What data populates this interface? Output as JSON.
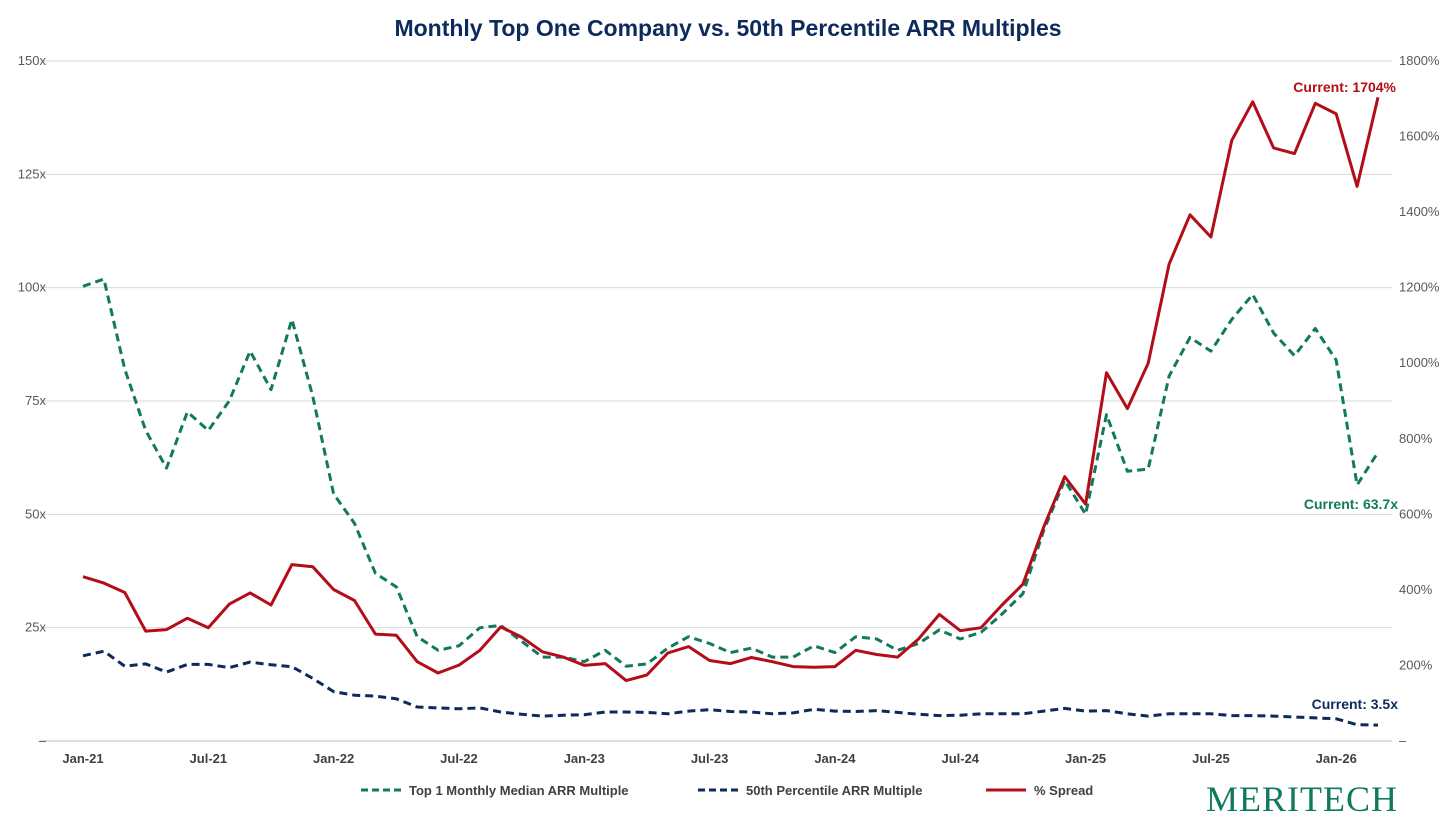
{
  "chart_data": {
    "type": "line",
    "title": "Monthly Top One Company vs. 50th Percentile ARR Multiples",
    "left_axis": {
      "min": 0,
      "max": 150,
      "ticks": [
        0,
        25,
        50,
        75,
        100,
        125,
        150
      ],
      "tick_labels": [
        "–",
        "25x",
        "50x",
        "75x",
        "100x",
        "125x",
        "150x"
      ]
    },
    "right_axis": {
      "min": 0,
      "max": 1800,
      "ticks": [
        0,
        200,
        400,
        600,
        800,
        1000,
        1200,
        1400,
        1600,
        1800
      ],
      "tick_labels": [
        "–",
        "200%",
        "400%",
        "600%",
        "800%",
        "1000%",
        "1200%",
        "1400%",
        "1600%",
        "1800%"
      ]
    },
    "x": [
      "Jan-21",
      "Feb-21",
      "Mar-21",
      "Apr-21",
      "May-21",
      "Jun-21",
      "Jul-21",
      "Aug-21",
      "Sep-21",
      "Oct-21",
      "Nov-21",
      "Dec-21",
      "Jan-22",
      "Feb-22",
      "Mar-22",
      "Apr-22",
      "May-22",
      "Jun-22",
      "Jul-22",
      "Aug-22",
      "Sep-22",
      "Oct-22",
      "Nov-22",
      "Dec-22",
      "Jan-23",
      "Feb-23",
      "Mar-23",
      "Apr-23",
      "May-23",
      "Jun-23",
      "Jul-23",
      "Aug-23",
      "Sep-23",
      "Oct-23",
      "Nov-23",
      "Dec-23",
      "Jan-24",
      "Feb-24",
      "Mar-24",
      "Apr-24",
      "May-24",
      "Jun-24",
      "Jul-24",
      "Aug-24",
      "Sep-24",
      "Oct-24",
      "Nov-24",
      "Dec-24",
      "Jan-25",
      "Feb-25",
      "Mar-25",
      "Apr-25",
      "May-25",
      "Jun-25",
      "Jul-25",
      "Aug-25",
      "Sep-25",
      "Oct-25",
      "Nov-25",
      "Dec-25",
      "Jan-26",
      "Feb-26",
      "Mar-26"
    ],
    "x_tick_labels": [
      "Jan-21",
      "Jul-21",
      "Jan-22",
      "Jul-22",
      "Jan-23",
      "Jul-23",
      "Jan-24",
      "Jul-24",
      "Jan-25",
      "Jul-25",
      "Jan-26"
    ],
    "series": [
      {
        "name": "Top 1 Monthly Median ARR Multiple",
        "axis": "left",
        "color": "#127a5c",
        "style": "dashed",
        "values": [
          100.3,
          101.9,
          82.0,
          68.5,
          60.2,
          72.6,
          68.5,
          75.0,
          86.0,
          77.5,
          93.0,
          76.0,
          54.5,
          48.0,
          37.0,
          34.0,
          23.0,
          20.0,
          21.0,
          25.0,
          25.5,
          22.0,
          18.5,
          18.5,
          17.5,
          20.0,
          16.5,
          17.0,
          20.5,
          23.0,
          21.5,
          19.5,
          20.5,
          18.5,
          18.5,
          21.0,
          19.5,
          23.0,
          22.5,
          20.0,
          21.5,
          24.5,
          22.5,
          24.0,
          28.0,
          32.5,
          46.5,
          57.5,
          50.0,
          72.0,
          59.5,
          60.0,
          80.5,
          89.0,
          86.0,
          93.0,
          98.5,
          90.0,
          85.0,
          91.0,
          84.0,
          56.5,
          63.7
        ]
      },
      {
        "name": "50th Percentile ARR Multiple",
        "axis": "left",
        "color": "#0d2a5c",
        "style": "dashed",
        "values": [
          18.8,
          19.8,
          16.5,
          17.0,
          15.2,
          16.9,
          16.9,
          16.2,
          17.4,
          16.8,
          16.4,
          13.8,
          10.9,
          10.1,
          9.9,
          9.3,
          7.5,
          7.3,
          7.1,
          7.3,
          6.4,
          5.9,
          5.5,
          5.7,
          5.8,
          6.4,
          6.4,
          6.3,
          6.0,
          6.6,
          6.9,
          6.5,
          6.4,
          6.0,
          6.2,
          7.0,
          6.6,
          6.5,
          6.7,
          6.3,
          5.9,
          5.6,
          5.7,
          6.0,
          6.0,
          6.0,
          6.6,
          7.2,
          6.6,
          6.7,
          6.0,
          5.5,
          6.0,
          6.0,
          6.0,
          5.6,
          5.6,
          5.5,
          5.3,
          5.1,
          4.9,
          3.6,
          3.5
        ]
      },
      {
        "name": "% Spread",
        "axis": "right",
        "color": "#b30e18",
        "style": "solid",
        "values": [
          435,
          418,
          393,
          291,
          295,
          325,
          300,
          362,
          392,
          360,
          467,
          461,
          401,
          372,
          283,
          280,
          210,
          180,
          201,
          240,
          302,
          275,
          236,
          222,
          200,
          205,
          160,
          175,
          233,
          250,
          213,
          205,
          221,
          210,
          197,
          195,
          197,
          240,
          229,
          222,
          270,
          335,
          292,
          300,
          360,
          415,
          567,
          700,
          627,
          975,
          880,
          1000,
          1262,
          1393,
          1334,
          1590,
          1692,
          1570,
          1555,
          1688,
          1660,
          1468,
          1704
        ]
      }
    ],
    "annotations": {
      "spread": "Current: 1704%",
      "top1": "Current: 63.7x",
      "p50": "Current: 3.5x"
    },
    "legend": [
      "Top 1 Monthly Median ARR Multiple",
      "50th Percentile ARR Multiple",
      "% Spread"
    ],
    "legend_position": "bottom",
    "grid": true
  },
  "branding": {
    "logo_text": "MERITECH",
    "logo_color": "#0f7a5e"
  }
}
